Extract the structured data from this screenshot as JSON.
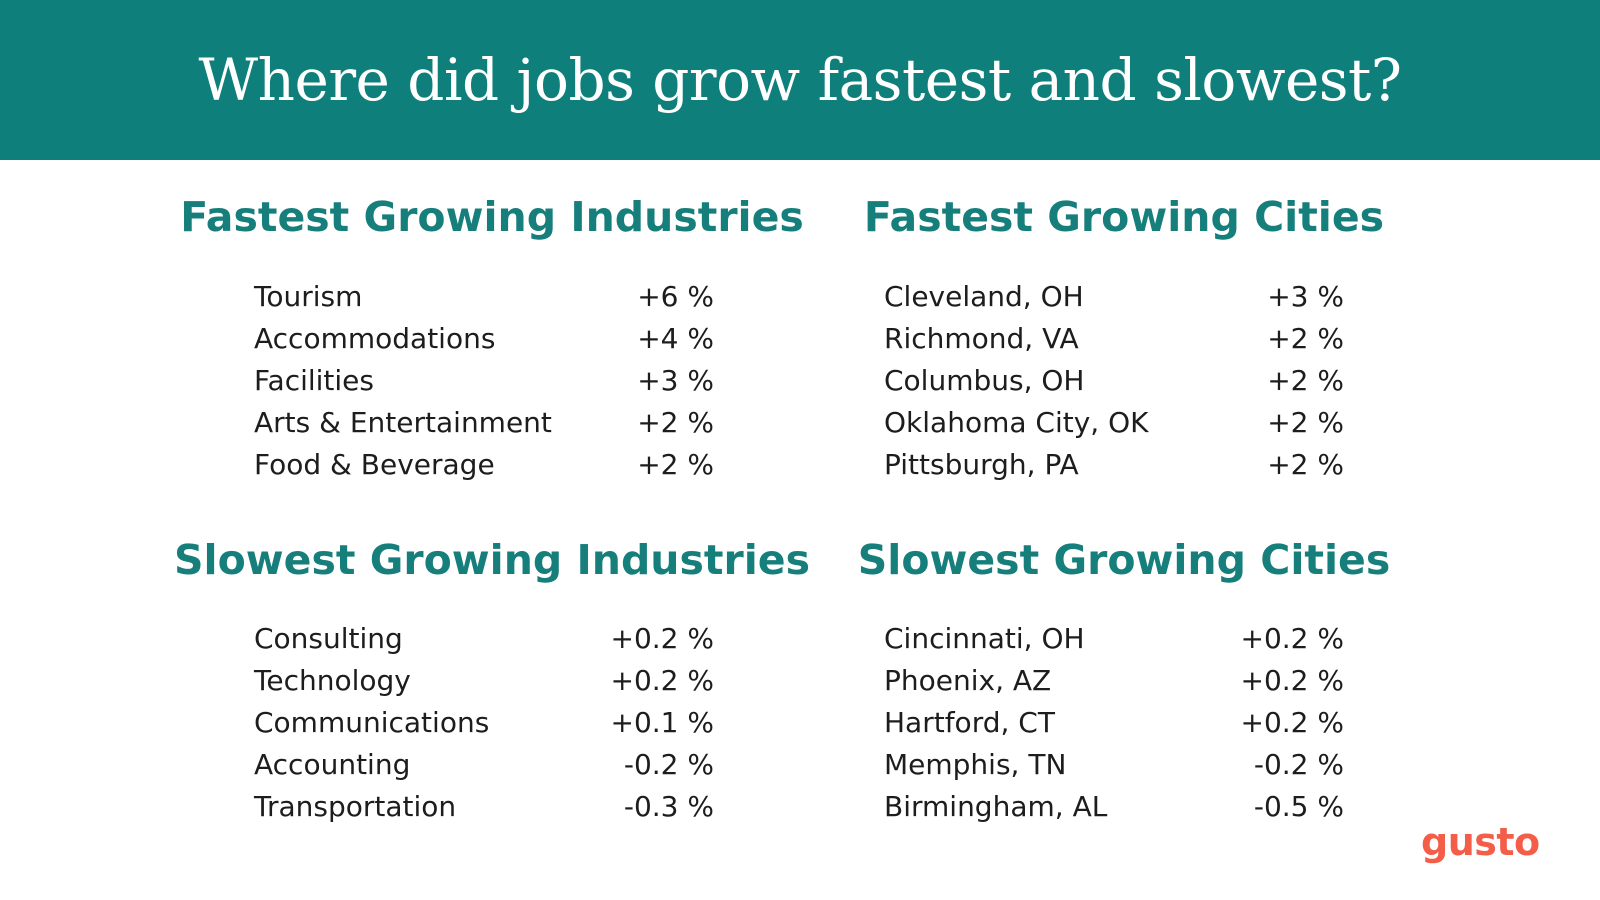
{
  "title": "Where did jobs grow fastest and slowest?",
  "brand": "gusto",
  "colors": {
    "header_bg": "#0f7f7c",
    "section_title": "#167f7b",
    "text": "#1d1d1d",
    "brand": "#f45d48"
  },
  "sections": {
    "fastest_industries": {
      "title": "Fastest Growing Industries",
      "rows": [
        {
          "label": "Tourism",
          "value": "+6 %"
        },
        {
          "label": "Accommodations",
          "value": "+4 %"
        },
        {
          "label": "Facilities",
          "value": "+3 %"
        },
        {
          "label": "Arts & Entertainment",
          "value": "+2 %"
        },
        {
          "label": "Food & Beverage",
          "value": "+2 %"
        }
      ]
    },
    "fastest_cities": {
      "title": "Fastest Growing Cities",
      "rows": [
        {
          "label": "Cleveland, OH",
          "value": "+3 %"
        },
        {
          "label": "Richmond, VA",
          "value": "+2 %"
        },
        {
          "label": "Columbus, OH",
          "value": "+2 %"
        },
        {
          "label": "Oklahoma City, OK",
          "value": "+2 %"
        },
        {
          "label": "Pittsburgh, PA",
          "value": "+2 %"
        }
      ]
    },
    "slowest_industries": {
      "title": "Slowest Growing Industries",
      "rows": [
        {
          "label": "Consulting",
          "value": "+0.2 %"
        },
        {
          "label": "Technology",
          "value": "+0.2 %"
        },
        {
          "label": "Communications",
          "value": "+0.1 %"
        },
        {
          "label": "Accounting",
          "value": "-0.2 %"
        },
        {
          "label": "Transportation",
          "value": "-0.3 %"
        }
      ]
    },
    "slowest_cities": {
      "title": "Slowest Growing Cities",
      "rows": [
        {
          "label": "Cincinnati, OH",
          "value": "+0.2 %"
        },
        {
          "label": "Phoenix, AZ",
          "value": "+0.2 %"
        },
        {
          "label": "Hartford, CT",
          "value": "+0.2 %"
        },
        {
          "label": "Memphis, TN",
          "value": "-0.2 %"
        },
        {
          "label": "Birmingham, AL",
          "value": "-0.5 %"
        }
      ]
    }
  }
}
